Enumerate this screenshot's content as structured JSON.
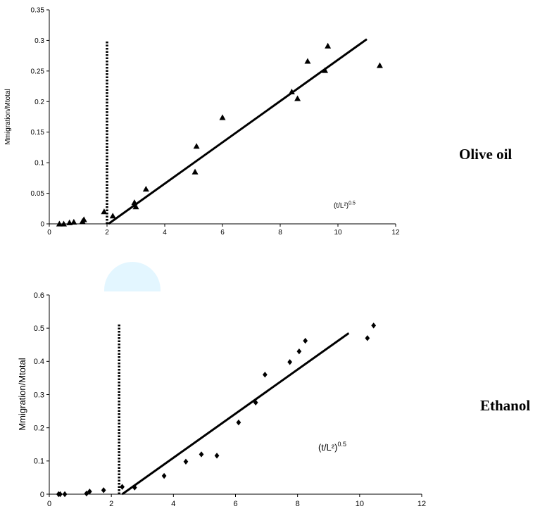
{
  "labels": {
    "top_side": "Olive oil",
    "bottom_side": "Ethanol"
  },
  "chart_data": [
    {
      "type": "scatter",
      "title": "",
      "ylabel": "Mmigration/Mtotal",
      "xlabel_base": "(t/L²)",
      "xlabel_sup": "0.5",
      "xlim": [
        0,
        12
      ],
      "ylim": [
        0,
        0.35
      ],
      "x_ticks": [
        "0",
        "2",
        "4",
        "6",
        "8",
        "10",
        "12"
      ],
      "y_ticks": [
        "0",
        "0.05",
        "0.1",
        "0.15",
        "0.2",
        "0.25",
        "0.3",
        "0.35"
      ],
      "marker": "triangle",
      "grid": false,
      "points": {
        "x": [
          0.35,
          0.5,
          0.7,
          0.85,
          1.15,
          1.2,
          1.9,
          2.2,
          2.95,
          3.0,
          3.35,
          5.05,
          5.1,
          6.0,
          8.4,
          8.6,
          8.95,
          9.55,
          9.65,
          11.45
        ],
        "y": [
          0.0,
          0.0,
          0.002,
          0.003,
          0.004,
          0.007,
          0.02,
          0.013,
          0.035,
          0.028,
          0.057,
          0.085,
          0.127,
          0.174,
          0.216,
          0.205,
          0.266,
          0.251,
          0.291,
          0.259
        ]
      },
      "fit_line": {
        "x": [
          2.05,
          11.0
        ],
        "y": [
          0.0,
          0.302
        ]
      },
      "threshold_line": {
        "x": 2.0,
        "y": [
          0.0,
          0.3
        ]
      }
    },
    {
      "type": "scatter",
      "title": "",
      "ylabel": "Mmigration/Mtotal",
      "xlabel_base": "(t/L²)",
      "xlabel_sup": "0.5",
      "xlim": [
        0,
        12
      ],
      "ylim": [
        0,
        0.6
      ],
      "x_ticks": [
        "0",
        "2",
        "4",
        "6",
        "8",
        "10",
        "12"
      ],
      "y_ticks": [
        "0",
        "0.1",
        "0.2",
        "0.3",
        "0.4",
        "0.5",
        "0.6"
      ],
      "marker": "diamond",
      "grid": false,
      "points": {
        "x": [
          0.3,
          0.35,
          0.5,
          1.2,
          1.3,
          1.75,
          2.35,
          2.75,
          3.7,
          4.4,
          4.9,
          5.4,
          6.1,
          6.65,
          6.95,
          7.75,
          8.05,
          8.25,
          10.25,
          10.45
        ],
        "y": [
          0.0,
          0.0,
          0.0,
          0.002,
          0.008,
          0.012,
          0.022,
          0.02,
          0.055,
          0.098,
          0.12,
          0.116,
          0.216,
          0.276,
          0.36,
          0.398,
          0.43,
          0.462,
          0.47,
          0.508
        ]
      },
      "fit_line": {
        "x": [
          2.35,
          9.65
        ],
        "y": [
          0.0,
          0.485
        ]
      },
      "threshold_line": {
        "x": 2.25,
        "y": [
          0.0,
          0.515
        ]
      }
    }
  ]
}
